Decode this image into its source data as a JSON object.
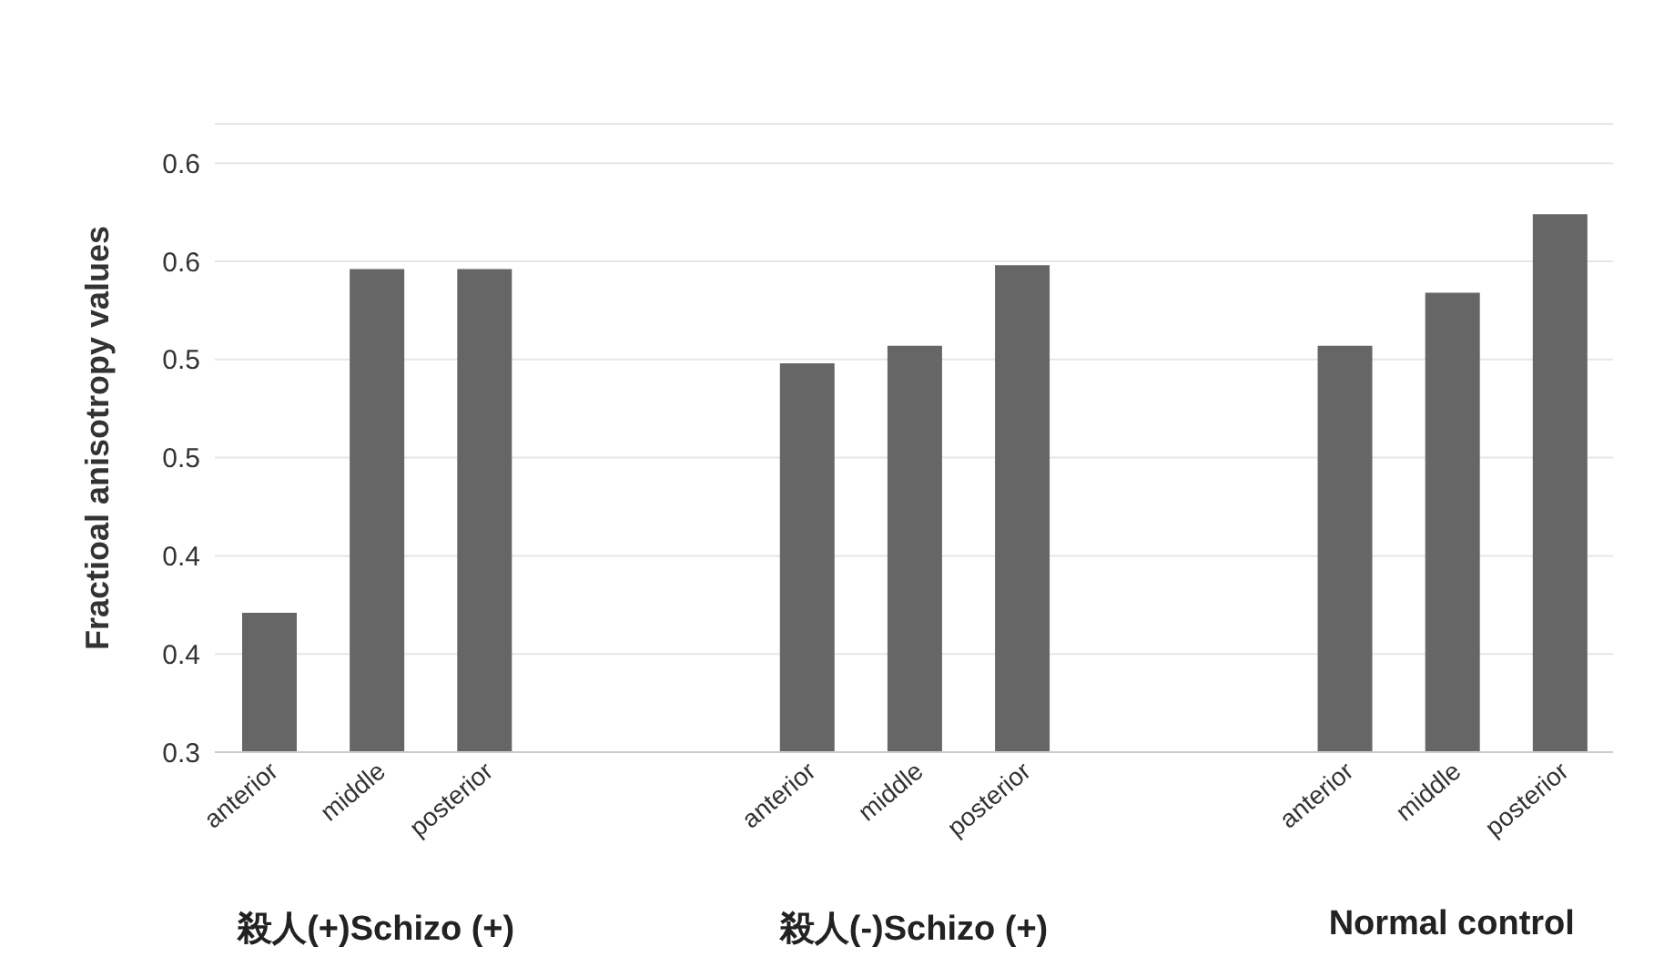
{
  "chart_data": {
    "type": "bar",
    "ylabel": "Fractioal anisotropy values",
    "categories": [
      "anterior",
      "middle",
      "posterior",
      null,
      null,
      "anterior",
      "middle",
      "posterior",
      null,
      null,
      "anterior",
      "middle",
      "posterior"
    ],
    "values": [
      0.371,
      0.546,
      0.546,
      null,
      null,
      0.498,
      0.507,
      0.548,
      null,
      null,
      0.507,
      0.534,
      0.574
    ],
    "color": "#666666",
    "ylim": [
      0.3,
      0.62
    ],
    "yticks": [
      {
        "value": 0.3,
        "label": "0.3"
      },
      {
        "value": 0.35,
        "label": "0.4"
      },
      {
        "value": 0.4,
        "label": "0.4"
      },
      {
        "value": 0.45,
        "label": "0.5"
      },
      {
        "value": 0.5,
        "label": "0.5"
      },
      {
        "value": 0.55,
        "label": "0.6"
      },
      {
        "value": 0.6,
        "label": "0.6"
      }
    ],
    "grid": "y",
    "annotations": [
      "殺人(+)Schizo (+)",
      "殺人(-)Schizo (+)",
      "Normal control"
    ]
  }
}
